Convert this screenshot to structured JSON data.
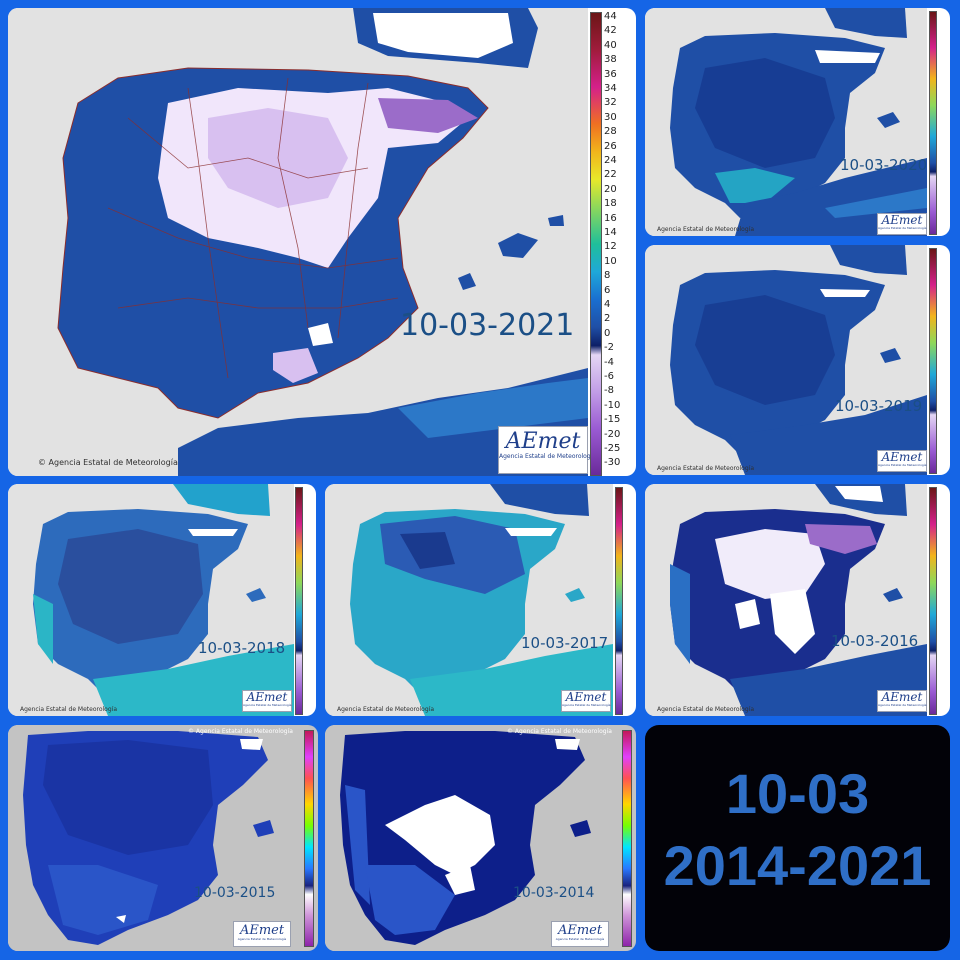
{
  "panels": [
    {
      "date": "10-03-2021",
      "credit": "Agencia Estatal de Meteorología",
      "scale": [
        "44",
        "42",
        "40",
        "38",
        "36",
        "34",
        "32",
        "30",
        "28",
        "26",
        "24",
        "22",
        "20",
        "18",
        "16",
        "14",
        "12",
        "10",
        "8",
        "6",
        "4",
        "2",
        "0",
        "-2",
        "-4",
        "-6",
        "-8",
        "-10",
        "-15",
        "-20",
        "-25",
        "-30"
      ]
    },
    {
      "date": "10-03-2020",
      "credit": "Agencia Estatal de Meteorología"
    },
    {
      "date": "10-03-2019",
      "credit": "Agencia Estatal de Meteorología"
    },
    {
      "date": "10-03-2018",
      "credit": "Agencia Estatal de Meteorología"
    },
    {
      "date": "10-03-2017",
      "credit": "Agencia Estatal de Meteorología"
    },
    {
      "date": "10-03-2016",
      "credit": "Agencia Estatal de Meteorología"
    },
    {
      "date": "10-03-2015",
      "credit": "Agencia Estatal de Meteorología"
    },
    {
      "date": "10-03-2014",
      "credit": "Agencia Estatal de Meteorología"
    }
  ],
  "logo": {
    "name": "AEmet",
    "subtitle": "Agencia Estatal de Meteorología"
  },
  "summary": {
    "line1": "10-03",
    "line2": "2014-2021"
  },
  "colors": {
    "border": "#1565e6",
    "land_cold": "#1f4fa6",
    "land_deep": "#14308a",
    "land_mild": "#2aa7d6",
    "snow": "#ffffff",
    "frost": "#c9a7ec",
    "sea": "#e2e2e2",
    "date_text": "#1b4f86",
    "summary_text": "#2f6fc7"
  }
}
